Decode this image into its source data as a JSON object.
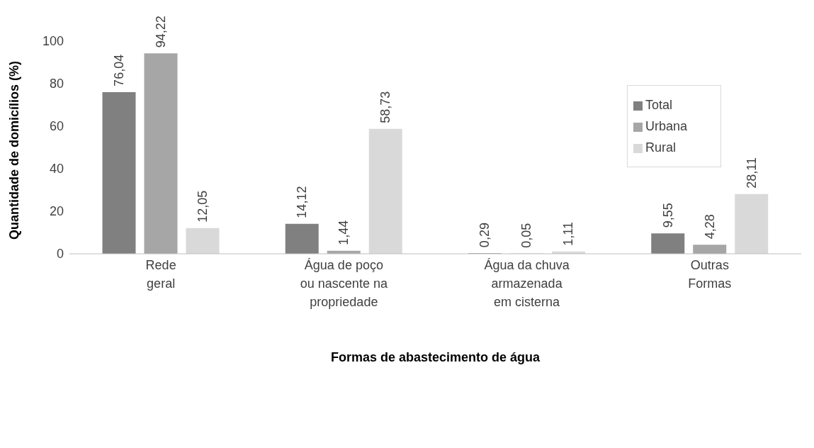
{
  "chart_data": {
    "type": "bar",
    "xlabel": "Formas de abastecimento de água",
    "ylabel": "Quantidade de domicílios (%)",
    "categories": [
      "Rede\ngeral",
      "Água de poço\nou nascente na\npropriedade",
      "Água da chuva\narmazenada\nem cisterna",
      "Outras\nFormas"
    ],
    "series": [
      {
        "name": "Total",
        "color": "#808080",
        "values": [
          76.04,
          14.12,
          0.29,
          9.55
        ],
        "value_labels": [
          "76,04",
          "14,12",
          "0,29",
          "9,55"
        ]
      },
      {
        "name": "Urbana",
        "color": "#a6a6a6",
        "values": [
          94.22,
          1.44,
          0.05,
          4.28
        ],
        "value_labels": [
          "94,22",
          "1,44",
          "0,05",
          "4,28"
        ]
      },
      {
        "name": "Rural",
        "color": "#d9d9d9",
        "values": [
          12.05,
          58.73,
          1.11,
          28.11
        ],
        "value_labels": [
          "12,05",
          "58,73",
          "1,11",
          "28,11"
        ]
      }
    ],
    "ylim": [
      0,
      100
    ],
    "yticks": [
      0,
      20,
      40,
      60,
      80,
      100
    ],
    "grid": false,
    "legend": "top right"
  }
}
